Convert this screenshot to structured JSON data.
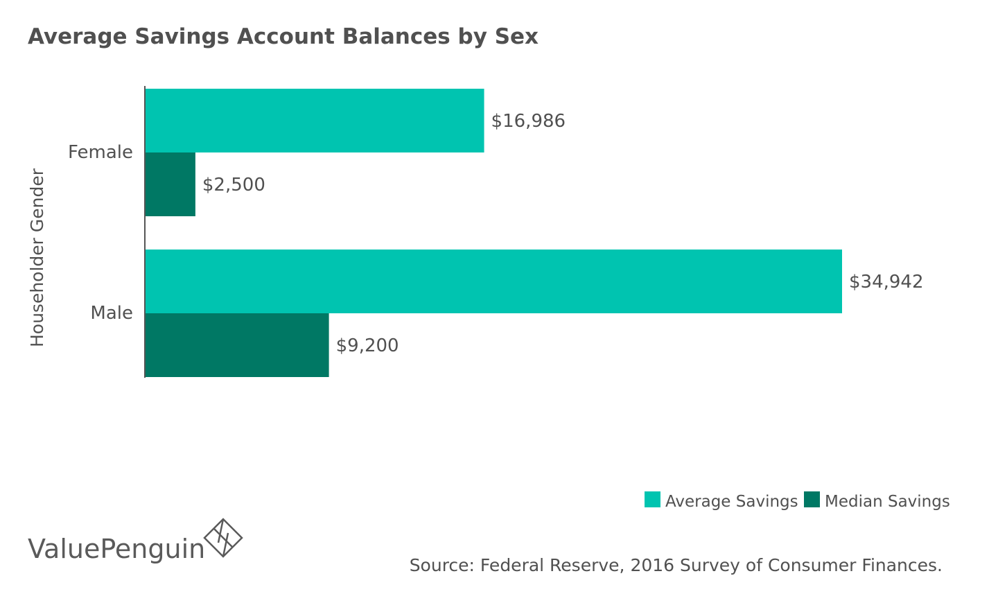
{
  "chart_data": {
    "type": "bar",
    "orientation": "horizontal",
    "title": "Average Savings Account Balances by Sex",
    "ylabel": "Householder Gender",
    "xlabel": "",
    "categories": [
      "Female",
      "Male"
    ],
    "series": [
      {
        "name": "Average Savings",
        "color": "#00c4b0",
        "values": [
          16986,
          34942
        ],
        "labels": [
          "$16,986",
          "$34,942"
        ]
      },
      {
        "name": "Median Savings",
        "color": "#007864",
        "values": [
          2500,
          9200
        ],
        "labels": [
          "$2,500",
          "$9,200"
        ]
      }
    ],
    "xlim": [
      0,
      35000
    ],
    "grid": false,
    "legend": "bottom-right"
  },
  "footer": {
    "brand": "ValuePenguin",
    "source": "Source: Federal Reserve, 2016 Survey of Consumer Finances."
  },
  "icons": {
    "brand_logo": "valuepenguin-diamond-logo-icon"
  }
}
